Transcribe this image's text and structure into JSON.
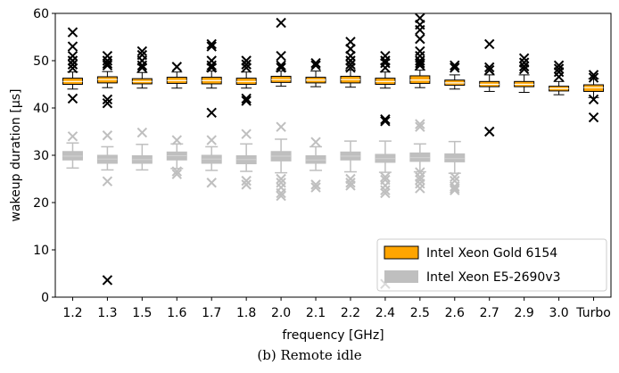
{
  "chart_data": {
    "type": "box",
    "title": "",
    "caption": "(b)  Remote idle",
    "xlabel": "frequency [GHz]",
    "ylabel": "wakeup duration [µs]",
    "ylim": [
      0,
      60
    ],
    "yticks": [
      0,
      10,
      20,
      30,
      40,
      50,
      60
    ],
    "grid": false,
    "legend_position": "bottom-right",
    "categories": [
      "1.2",
      "1.3",
      "1.5",
      "1.6",
      "1.7",
      "1.8",
      "2.0",
      "2.1",
      "2.2",
      "2.4",
      "2.5",
      "2.6",
      "2.7",
      "2.9",
      "3.0",
      "Turbo"
    ],
    "series": [
      {
        "name": "Intel Xeon Gold 6154",
        "color": "#ffa500",
        "boxes": [
          {
            "whislo": 44,
            "q1": 45,
            "med": 45.6,
            "q3": 46.3,
            "whishi": 47.6,
            "fliers": [
              56,
              53,
              51,
              50,
              49.2,
              48.4,
              42
            ]
          },
          {
            "whislo": 44.3,
            "q1": 45.3,
            "med": 46,
            "q3": 46.6,
            "whishi": 47.7,
            "fliers": [
              51,
              50,
              49.4,
              49,
              41.8,
              41,
              3.6
            ]
          },
          {
            "whislo": 44.2,
            "q1": 45.1,
            "med": 45.6,
            "q3": 46.2,
            "whishi": 47.5,
            "fliers": [
              52,
              51.2,
              50,
              49,
              48.5
            ]
          },
          {
            "whislo": 44.2,
            "q1": 45.2,
            "med": 45.8,
            "q3": 46.5,
            "whishi": 47.6,
            "fliers": [
              48.7
            ]
          },
          {
            "whislo": 44.2,
            "q1": 45.1,
            "med": 45.8,
            "q3": 46.5,
            "whishi": 47.8,
            "fliers": [
              53.5,
              53,
              50,
              49,
              48.5,
              39
            ]
          },
          {
            "whislo": 44.2,
            "q1": 45,
            "med": 45.6,
            "q3": 46.3,
            "whishi": 47.6,
            "fliers": [
              50,
              49.2,
              48.5,
              42,
              41.5
            ]
          },
          {
            "whislo": 44.6,
            "q1": 45.4,
            "med": 46,
            "q3": 46.7,
            "whishi": 47.8,
            "fliers": [
              58,
              51,
              49,
              48.5
            ]
          },
          {
            "whislo": 44.5,
            "q1": 45.3,
            "med": 45.9,
            "q3": 46.5,
            "whishi": 47.8,
            "fliers": [
              49.5,
              49
            ]
          },
          {
            "whislo": 44.4,
            "q1": 45.3,
            "med": 46,
            "q3": 46.7,
            "whishi": 48,
            "fliers": [
              54,
              52.5,
              51,
              50,
              49.2,
              48.5
            ]
          },
          {
            "whislo": 44.2,
            "q1": 45,
            "med": 45.6,
            "q3": 46.3,
            "whishi": 47.6,
            "fliers": [
              51,
              50,
              49.5,
              48.5,
              37.6,
              37.2,
              2.8
            ]
          },
          {
            "whislo": 44.3,
            "q1": 45.2,
            "med": 45.9,
            "q3": 46.8,
            "whishi": 48,
            "fliers": [
              59,
              57.6,
              56.5,
              54.6,
              52,
              51,
              50,
              49.5,
              49
            ]
          },
          {
            "whislo": 44,
            "q1": 44.8,
            "med": 45.3,
            "q3": 45.9,
            "whishi": 47,
            "fliers": [
              49,
              48.5
            ]
          },
          {
            "whislo": 43.5,
            "q1": 44.5,
            "med": 45,
            "q3": 45.6,
            "whishi": 47,
            "fliers": [
              53.5,
              48.6,
              48,
              35
            ]
          },
          {
            "whislo": 43.3,
            "q1": 44.5,
            "med": 45,
            "q3": 45.6,
            "whishi": 47,
            "fliers": [
              50.5,
              49.6,
              48.8,
              48.2
            ]
          },
          {
            "whislo": 42.8,
            "q1": 43.6,
            "med": 44.1,
            "q3": 44.6,
            "whishi": 45.6,
            "fliers": [
              49,
              48.3,
              47.6,
              46.6
            ]
          },
          {
            "whislo": 42.2,
            "q1": 43.5,
            "med": 44.3,
            "q3": 44.9,
            "whishi": 46.2,
            "fliers": [
              47,
              46.4,
              41.8,
              38
            ]
          }
        ]
      },
      {
        "name": "Intel Xeon E5-2690v3",
        "color": "#bfbfbf",
        "boxes": [
          {
            "whislo": 27.3,
            "q1": 29,
            "med": 29.8,
            "q3": 30.8,
            "whishi": 32.6,
            "fliers": [
              34
            ]
          },
          {
            "whislo": 26.9,
            "q1": 28.3,
            "med": 29.2,
            "q3": 30,
            "whishi": 31.8,
            "fliers": [
              34.2,
              24.5
            ]
          },
          {
            "whislo": 26.9,
            "q1": 28.3,
            "med": 29.1,
            "q3": 29.9,
            "whishi": 32.3,
            "fliers": [
              34.8
            ]
          },
          {
            "whislo": 27.2,
            "q1": 29,
            "med": 29.9,
            "q3": 30.7,
            "whishi": 32.4,
            "fliers": [
              33.2,
              26.6,
              26
            ]
          },
          {
            "whislo": 26.8,
            "q1": 28.3,
            "med": 29.2,
            "q3": 30,
            "whishi": 31.8,
            "fliers": [
              33.2,
              24.2
            ]
          },
          {
            "whislo": 26.6,
            "q1": 28.2,
            "med": 29.1,
            "q3": 29.9,
            "whishi": 32.4,
            "fliers": [
              34.5,
              24.6,
              23.8
            ]
          },
          {
            "whislo": 26.3,
            "q1": 28.8,
            "med": 29.8,
            "q3": 30.8,
            "whishi": 33.4,
            "fliers": [
              36,
              25,
              24.2,
              23.2,
              22,
              21.4
            ]
          },
          {
            "whislo": 26.8,
            "q1": 28.3,
            "med": 29,
            "q3": 29.9,
            "whishi": 31.8,
            "fliers": [
              32.8,
              23.8,
              23.2
            ]
          },
          {
            "whislo": 26.5,
            "q1": 29,
            "med": 29.8,
            "q3": 30.7,
            "whishi": 33,
            "fliers": [
              25,
              24.2,
              23.6
            ]
          },
          {
            "whislo": 26.4,
            "q1": 28.5,
            "med": 29.3,
            "q3": 30.2,
            "whishi": 33,
            "fliers": [
              25.4,
              24.8,
              23.6,
              22.6,
              22
            ]
          },
          {
            "whislo": 26.5,
            "q1": 28.7,
            "med": 29.5,
            "q3": 30.5,
            "whishi": 32.4,
            "fliers": [
              36.6,
              36,
              26.4,
              25.4,
              24.8,
              24,
              23
            ]
          },
          {
            "whislo": 26.2,
            "q1": 28.6,
            "med": 29.3,
            "q3": 30.3,
            "whishi": 32.9,
            "fliers": [
              25.4,
              24.6,
              23.4,
              23,
              22.6
            ]
          }
        ]
      }
    ]
  }
}
